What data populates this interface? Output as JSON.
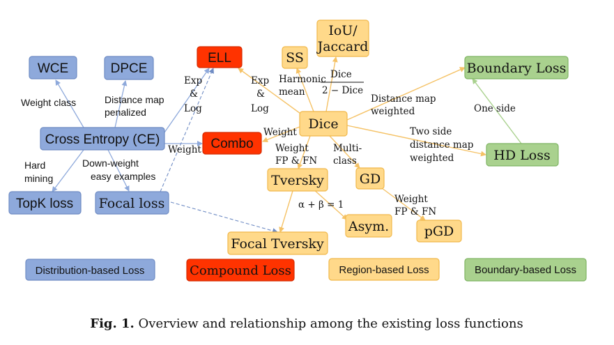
{
  "nodes": {
    "wce": "WCE",
    "dpce": "DPCE",
    "ell": "ELL",
    "ss": "SS",
    "iou_line1": "IoU/",
    "iou_line2": "Jaccard",
    "boundary_loss": "Boundary Loss",
    "cross_entropy": "Cross Entropy (CE)",
    "combo": "Combo",
    "dice": "Dice",
    "hd_loss": "HD Loss",
    "tversky": "Tversky",
    "gd": "GD",
    "topk": "TopK loss",
    "focal": "Focal loss",
    "asym": "Asym.",
    "pgd": "pGD",
    "focal_tversky": "Focal Tversky"
  },
  "edge_labels": {
    "weight_class": "Weight class",
    "distance_map_penalized_1": "Distance map",
    "distance_map_penalized_2": "penalized",
    "exp_log_left": [
      "Exp",
      "&",
      "Log"
    ],
    "exp_log_right": [
      "Exp",
      "&",
      "Log"
    ],
    "harmonic_1": "Harmonic",
    "harmonic_2": "mean",
    "dice_fraction_num": "Dice",
    "dice_fraction_den": "2 − Dice",
    "distance_map_weighted_1": "Distance map",
    "distance_map_weighted_2": "weighted",
    "one_side": "One side",
    "weight_ce_combo": "Weight",
    "weight_dice_combo": "Weight",
    "weight_fp_fn_1": "Weight",
    "weight_fp_fn_2": "FP & FN",
    "multi_class_1": "Multi-",
    "multi_class_2": "class",
    "two_side_1": "Two side",
    "two_side_2": "distance map",
    "two_side_3": "weighted",
    "hard_mining_1": "Hard",
    "hard_mining_2": "mining",
    "down_weight_1": "Down-weight",
    "down_weight_2": "easy examples",
    "alpha_beta": "α + β = 1",
    "weight_fp_fn_gd_1": "Weight",
    "weight_fp_fn_gd_2": "FP & FN"
  },
  "legend": {
    "distribution": "Distribution-based Loss",
    "compound": "Compound Loss",
    "region": "Region-based Loss",
    "boundary": "Boundary-based Loss"
  },
  "caption": {
    "label": "Fig. 1.",
    "text": " Overview and relationship among the existing loss functions"
  },
  "colors": {
    "distribution": "#8ea9db",
    "compound": "#ff3300",
    "region": "#ffd98a",
    "boundary": "#a9d18e"
  }
}
